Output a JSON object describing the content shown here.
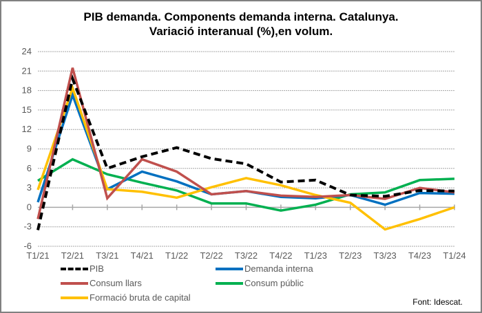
{
  "chart_data": {
    "type": "line",
    "title": "PIB demanda. Components demanda interna. Catalunya.",
    "subtitle": "Variació interanual (%),en volum.",
    "xlabel": "",
    "ylabel": "",
    "ylim": [
      -6,
      24
    ],
    "yticks": [
      24,
      21,
      18,
      15,
      12,
      9,
      6,
      3,
      0,
      -3,
      -6
    ],
    "ytick_labels": [
      "24",
      "21",
      "18",
      "15",
      "12",
      "9",
      "6",
      "3",
      "0",
      "-3",
      "-6"
    ],
    "grid": true,
    "legend_position": "bottom",
    "categories": [
      "T1/21",
      "T2/21",
      "T3/21",
      "T4/21",
      "T1/22",
      "T2/22",
      "T3/22",
      "T4/22",
      "T1/23",
      "T2/23",
      "T3/23",
      "T4/23",
      "T1/24"
    ],
    "series": [
      {
        "name": "PIB",
        "color": "#000000",
        "dashed": true,
        "values": [
          -3.5,
          19.8,
          6.0,
          7.8,
          9.2,
          7.5,
          6.7,
          3.9,
          4.2,
          1.9,
          1.7,
          2.6,
          2.5
        ]
      },
      {
        "name": "Demanda interna",
        "color": "#0070C0",
        "dashed": false,
        "values": [
          0.8,
          17.3,
          2.8,
          5.5,
          4.0,
          2.0,
          2.5,
          1.6,
          1.4,
          1.9,
          0.4,
          2.2,
          2.1
        ]
      },
      {
        "name": "Consum llars",
        "color": "#C0504D",
        "dashed": false,
        "values": [
          -1.8,
          21.5,
          1.4,
          7.4,
          5.5,
          2.0,
          2.5,
          1.8,
          1.6,
          1.9,
          1.3,
          3.0,
          2.3
        ]
      },
      {
        "name": "Consum públic",
        "color": "#00B050",
        "dashed": false,
        "values": [
          4.1,
          7.4,
          5.1,
          3.8,
          2.6,
          0.6,
          0.6,
          -0.5,
          0.4,
          2.0,
          2.3,
          4.2,
          4.4
        ]
      },
      {
        "name": "Formació bruta de capital",
        "color": "#FFC000",
        "dashed": false,
        "values": [
          2.7,
          18.4,
          2.8,
          2.4,
          1.5,
          3.1,
          4.5,
          3.4,
          1.9,
          0.7,
          -3.4,
          -1.8,
          0.0
        ]
      }
    ],
    "source": "Font: Idescat."
  },
  "legend": {
    "items": [
      "PIB",
      "Demanda interna",
      "Consum llars",
      "Consum públic",
      "Formació bruta de capital"
    ]
  }
}
